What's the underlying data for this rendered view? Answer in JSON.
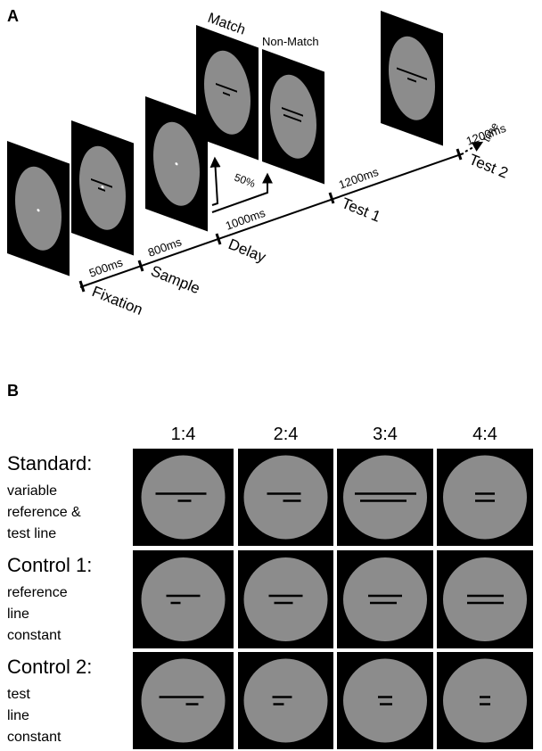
{
  "panel_a": {
    "label": "A",
    "match": "Match",
    "non_match": "Non-Match",
    "percent": "50%",
    "time": "time",
    "timeline": [
      {
        "duration": "500ms",
        "epoch": "Fixation"
      },
      {
        "duration": "800ms",
        "epoch": "Sample"
      },
      {
        "duration": "1000ms",
        "epoch": "Delay"
      },
      {
        "duration": "1200ms",
        "epoch": "Test 1"
      },
      {
        "duration": "1200ms",
        "epoch": "Test 2"
      }
    ]
  },
  "panel_b": {
    "label": "B",
    "columns": [
      "1:4",
      "2:4",
      "3:4",
      "4:4"
    ],
    "rows": [
      {
        "title": "Standard:",
        "description": [
          "variable",
          "reference &",
          "test line"
        ]
      },
      {
        "title": "Control 1:",
        "description": [
          "reference",
          "line",
          "constant"
        ]
      },
      {
        "title": "Control 2:",
        "description": [
          "test",
          "line",
          "constant"
        ]
      }
    ]
  }
}
